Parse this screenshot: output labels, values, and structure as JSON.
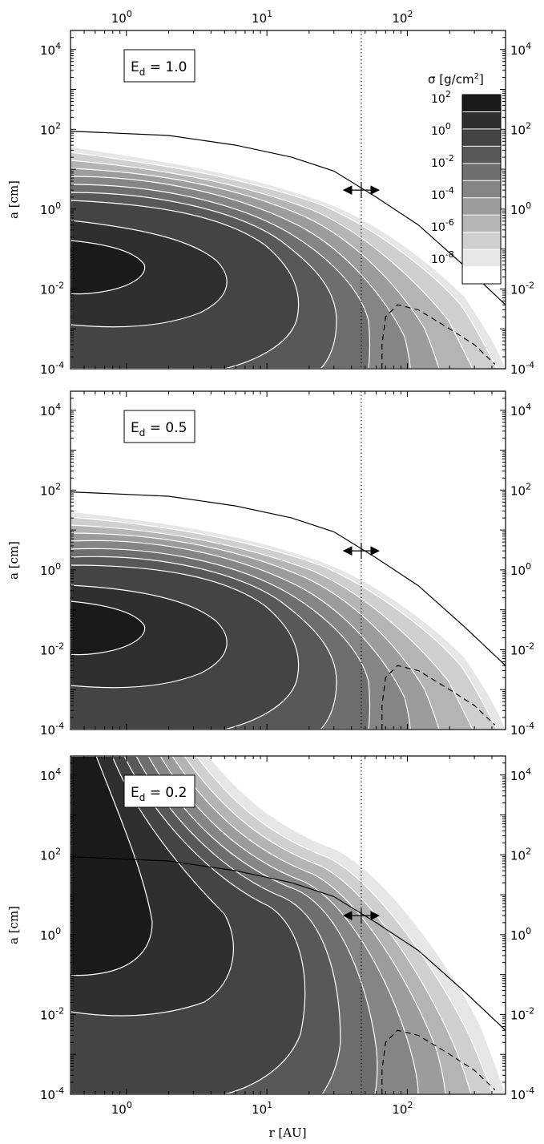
{
  "chart_data": [
    {
      "type": "heatmap",
      "xlabel": "",
      "ylabel": "a [cm]",
      "x_scale": "log",
      "y_scale": "log",
      "xlim": [
        0.4,
        500
      ],
      "ylim": [
        0.0001,
        30000
      ],
      "x_ticks": [
        {
          "v": 1,
          "m": "10",
          "e": "0"
        },
        {
          "v": 10,
          "m": "10",
          "e": "1"
        },
        {
          "v": 100,
          "m": "10",
          "e": "2"
        }
      ],
      "y_ticks": [
        {
          "v": 0.0001,
          "m": "10",
          "e": "-4"
        },
        {
          "v": 0.01,
          "m": "10",
          "e": "-2"
        },
        {
          "v": 1,
          "m": "10",
          "e": "0"
        },
        {
          "v": 100,
          "m": "10",
          "e": "2"
        },
        {
          "v": 10000,
          "m": "10",
          "e": "4"
        }
      ],
      "annotation": {
        "label": "E",
        "sub": "d",
        "value": " = 1.0"
      },
      "dotted_line_r": 47,
      "drift_marker": {
        "r": 47,
        "a": 3
      },
      "upper_limit_curve": [
        [
          0.4,
          90
        ],
        [
          2,
          70
        ],
        [
          6,
          40
        ],
        [
          15,
          20
        ],
        [
          30,
          9
        ],
        [
          60,
          2
        ],
        [
          120,
          0.4
        ],
        [
          250,
          0.04
        ],
        [
          500,
          0.004
        ]
      ],
      "dashed_curve": [
        [
          66,
          0.0001
        ],
        [
          66,
          0.0004
        ],
        [
          70,
          0.002
        ],
        [
          85,
          0.004
        ],
        [
          120,
          0.003
        ],
        [
          200,
          0.001
        ],
        [
          300,
          0.0004
        ],
        [
          420,
          0.00013
        ]
      ],
      "colorbar": {
        "title": "σ [g/cm",
        "title_sup": "2",
        "title_end": "]",
        "ticks": [
          {
            "m": "10",
            "e": "2"
          },
          {
            "m": "10",
            "e": "0"
          },
          {
            "m": "10",
            "e": "-2"
          },
          {
            "m": "10",
            "e": "-4"
          },
          {
            "m": "10",
            "e": "-6"
          },
          {
            "m": "10",
            "e": "-8"
          }
        ]
      }
    },
    {
      "type": "heatmap",
      "xlabel": "",
      "ylabel": "a [cm]",
      "x_scale": "log",
      "y_scale": "log",
      "xlim": [
        0.4,
        500
      ],
      "ylim": [
        0.0001,
        30000
      ],
      "x_ticks": [],
      "y_ticks": [
        {
          "v": 0.0001,
          "m": "10",
          "e": "-4"
        },
        {
          "v": 0.01,
          "m": "10",
          "e": "-2"
        },
        {
          "v": 1,
          "m": "10",
          "e": "0"
        },
        {
          "v": 100,
          "m": "10",
          "e": "2"
        },
        {
          "v": 10000,
          "m": "10",
          "e": "4"
        }
      ],
      "annotation": {
        "label": "E",
        "sub": "d",
        "value": " = 0.5"
      },
      "dotted_line_r": 47,
      "drift_marker": {
        "r": 47,
        "a": 3
      },
      "upper_limit_curve": [
        [
          0.4,
          90
        ],
        [
          2,
          70
        ],
        [
          6,
          40
        ],
        [
          15,
          20
        ],
        [
          30,
          9
        ],
        [
          60,
          2
        ],
        [
          120,
          0.4
        ],
        [
          250,
          0.04
        ],
        [
          500,
          0.004
        ]
      ],
      "dashed_curve": [
        [
          66,
          0.0001
        ],
        [
          66,
          0.0004
        ],
        [
          70,
          0.002
        ],
        [
          85,
          0.004
        ],
        [
          120,
          0.003
        ],
        [
          200,
          0.001
        ],
        [
          300,
          0.0004
        ],
        [
          420,
          0.00013
        ]
      ]
    },
    {
      "type": "heatmap",
      "xlabel": "r [AU]",
      "ylabel": "a [cm]",
      "x_scale": "log",
      "y_scale": "log",
      "xlim": [
        0.4,
        500
      ],
      "ylim": [
        0.0001,
        30000
      ],
      "x_ticks": [
        {
          "v": 1,
          "m": "10",
          "e": "0"
        },
        {
          "v": 10,
          "m": "10",
          "e": "1"
        },
        {
          "v": 100,
          "m": "10",
          "e": "2"
        }
      ],
      "y_ticks": [
        {
          "v": 0.0001,
          "m": "10",
          "e": "-4"
        },
        {
          "v": 0.01,
          "m": "10",
          "e": "-2"
        },
        {
          "v": 1,
          "m": "10",
          "e": "0"
        },
        {
          "v": 100,
          "m": "10",
          "e": "2"
        },
        {
          "v": 10000,
          "m": "10",
          "e": "4"
        }
      ],
      "annotation": {
        "label": "E",
        "sub": "d",
        "value": " = 0.2"
      },
      "dotted_line_r": 47,
      "drift_marker": {
        "r": 47,
        "a": 3
      },
      "upper_limit_curve": [
        [
          0.4,
          90
        ],
        [
          2,
          70
        ],
        [
          6,
          40
        ],
        [
          15,
          20
        ],
        [
          30,
          9
        ],
        [
          60,
          2
        ],
        [
          120,
          0.4
        ],
        [
          250,
          0.04
        ],
        [
          500,
          0.004
        ]
      ],
      "dashed_curve": [
        [
          66,
          0.0001
        ],
        [
          66,
          0.0004
        ],
        [
          70,
          0.002
        ],
        [
          85,
          0.004
        ],
        [
          120,
          0.003
        ],
        [
          200,
          0.001
        ],
        [
          300,
          0.0004
        ],
        [
          420,
          0.00013
        ]
      ]
    }
  ]
}
